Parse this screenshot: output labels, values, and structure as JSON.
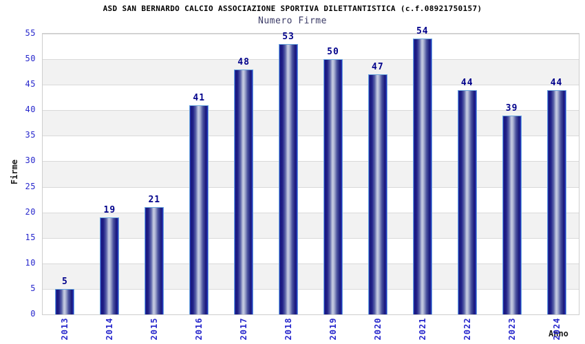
{
  "chart_data": {
    "type": "bar",
    "title": "ASD SAN BERNARDO CALCIO ASSOCIAZIONE SPORTIVA DILETTANTISTICA (c.f.08921750157)",
    "subtitle": "Numero Firme",
    "xlabel": "Anno",
    "ylabel": "Firme",
    "categories": [
      "2013",
      "2014",
      "2015",
      "2016",
      "2017",
      "2018",
      "2019",
      "2020",
      "2021",
      "2022",
      "2023",
      "2024"
    ],
    "values": [
      5,
      19,
      21,
      41,
      48,
      53,
      50,
      47,
      54,
      44,
      39,
      44
    ],
    "ylim": [
      0,
      55
    ],
    "ytick_step": 5,
    "yticks": [
      0,
      5,
      10,
      15,
      20,
      25,
      30,
      35,
      40,
      45,
      50,
      55
    ],
    "grid": true,
    "alternating_bands": true,
    "legend_position": "none",
    "colors": {
      "bar_dark": "#17177a",
      "bar_light": "#c7cde2",
      "bar_edge": "#2b3cc6",
      "bar_outline": "#6aa6dc",
      "value_label": "#00008b",
      "tick_label": "#2626cc",
      "axis_title": "#1a1a1a",
      "title": "#000000",
      "subtitle": "#3a3a66",
      "grid_line": "#d9d9d9",
      "band_fill": "#f2f2f2",
      "plot_border": "#cdcdcd",
      "background": "#ffffff"
    }
  }
}
